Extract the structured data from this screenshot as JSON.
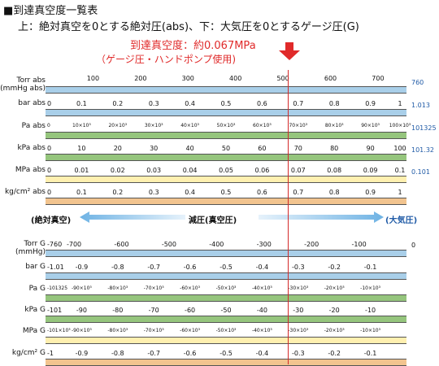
{
  "header": {
    "title": "■到達真空度一覧表",
    "subtitle": "上：絶対真空を0とする絶対圧(abs)、下：大気圧を0とするゲージ圧(G)"
  },
  "note": {
    "line1": "到達真空度：約0.067MPa",
    "line2": "（ゲージ圧・ハンドポンプ使用)"
  },
  "colors": {
    "blue": "#a9cfe9",
    "green": "#95c57d",
    "yellow": "#fff0b0",
    "orange": "#f2c48f",
    "accent_red": "#e02a2a",
    "end_blue": "#1f5aa6"
  },
  "abs_scales": [
    {
      "label": "Torr abs",
      "label2": "(mmHg abs)",
      "color": "blue",
      "ticks": [
        "100",
        "200",
        "300",
        "400",
        "500",
        "600",
        "700"
      ],
      "end": "760"
    },
    {
      "label": "bar abs",
      "color": "blue",
      "ticks": [
        "0",
        "0.1",
        "0.2",
        "0.3",
        "0.4",
        "0.5",
        "0.6",
        "0.7",
        "0.8",
        "0.9",
        "1"
      ],
      "end": "1.013"
    },
    {
      "label": "Pa abs",
      "color": "green",
      "small": true,
      "ticks": [
        "0",
        "10×10³",
        "20×10³",
        "30×10³",
        "40×10³",
        "50×10³",
        "60×10³",
        "70×10³",
        "80×10³",
        "90×10³",
        "100×10³"
      ],
      "end": "101325"
    },
    {
      "label": "kPa abs",
      "color": "green",
      "ticks": [
        "0",
        "10",
        "20",
        "30",
        "40",
        "50",
        "60",
        "70",
        "80",
        "90",
        "100"
      ],
      "end": "101.32"
    },
    {
      "label": "MPa abs",
      "color": "yellow",
      "ticks": [
        "0",
        "0.01",
        "0.02",
        "0.03",
        "0.04",
        "0.05",
        "0.06",
        "0.07",
        "0.08",
        "0.09",
        "0.1"
      ],
      "end": "0.101"
    },
    {
      "label": "kg/cm² abs",
      "color": "orange",
      "ticks": [
        "0",
        "0.1",
        "0.2",
        "0.3",
        "0.4",
        "0.5",
        "0.6",
        "0.7",
        "0.8",
        "0.9",
        "1"
      ],
      "end": ""
    }
  ],
  "middle": {
    "left": "(絶対真空)",
    "center": "減圧(真空圧)",
    "right": "(大気圧)"
  },
  "gauge_scales": [
    {
      "label": "Torr G",
      "label2": "(mmHg)",
      "color": "blue",
      "ticks": [
        "-760",
        "-700",
        "-600",
        "-500",
        "-400",
        "-300",
        "-200",
        "-100"
      ],
      "end": "0"
    },
    {
      "label": "bar G",
      "color": "blue",
      "ticks": [
        "-1.01",
        "-0.9",
        "-0.8",
        "-0.7",
        "-0.6",
        "-0.5",
        "-0.4",
        "-0.3",
        "-0.2",
        "-0.1"
      ],
      "end": ""
    },
    {
      "label": "Pa G",
      "color": "green",
      "small": true,
      "ticks": [
        "-101325",
        "-90×10³",
        "-80×10³",
        "-70×10³",
        "-60×10³",
        "-50×10³",
        "-40×10³",
        "-30×10³",
        "-20×10³",
        "-10×10³"
      ],
      "end": ""
    },
    {
      "label": "kPa G",
      "color": "green",
      "ticks": [
        "-101",
        "-90",
        "-80",
        "-70",
        "-60",
        "-50",
        "-40",
        "-30",
        "-20",
        "-10"
      ],
      "end": ""
    },
    {
      "label": "MPa G",
      "color": "yellow",
      "small": true,
      "ticks": [
        "-101×10³",
        "-90×10³",
        "-80×10³",
        "-70×10³",
        "-60×10³",
        "-50×10³",
        "-40×10³",
        "-30×10³",
        "-20×10³",
        "-10×10³"
      ],
      "end": ""
    },
    {
      "label": "kg/cm² G",
      "color": "orange",
      "ticks": [
        "-1",
        "-0.9",
        "-0.8",
        "-0.7",
        "-0.6",
        "-0.5",
        "-0.4",
        "-0.3",
        "-0.2",
        "-0.1"
      ],
      "end": ""
    }
  ]
}
